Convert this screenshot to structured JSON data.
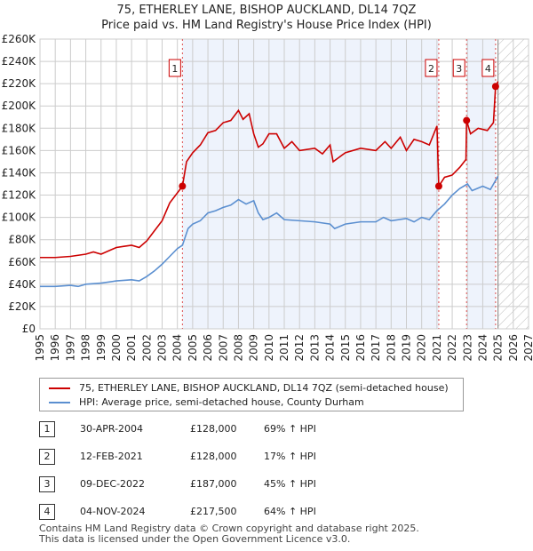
{
  "title": "75, ETHERLEY LANE, BISHOP AUCKLAND, DL14 7QZ",
  "subtitle": "Price paid vs. HM Land Registry's House Price Index (HPI)",
  "colors": {
    "price": "#cc0000",
    "hpi": "#5b8fd0",
    "shade": "#eef3fc"
  },
  "chart_data": {
    "type": "line",
    "title": "75, ETHERLEY LANE, BISHOP AUCKLAND, DL14 7QZ",
    "xlim": [
      1995,
      2027
    ],
    "ylim": [
      0,
      260000
    ],
    "x_ticks": [
      "1995",
      "1996",
      "1997",
      "1998",
      "1999",
      "2000",
      "2001",
      "2002",
      "2003",
      "2004",
      "2005",
      "2006",
      "2007",
      "2008",
      "2009",
      "2010",
      "2011",
      "2012",
      "2013",
      "2014",
      "2015",
      "2016",
      "2017",
      "2018",
      "2019",
      "2020",
      "2021",
      "2022",
      "2023",
      "2024",
      "2025",
      "2026",
      "2027"
    ],
    "y_ticks": [
      "£0",
      "£20K",
      "£40K",
      "£60K",
      "£80K",
      "£100K",
      "£120K",
      "£140K",
      "£160K",
      "£180K",
      "£200K",
      "£220K",
      "£240K",
      "£260K"
    ],
    "series": [
      {
        "name": "75, ETHERLEY LANE, BISHOP AUCKLAND, DL14 7QZ (semi-detached house)",
        "color": "#cc0000",
        "x": [
          1995,
          1996,
          1997,
          1998,
          1998.5,
          1999,
          2000,
          2000.5,
          2001,
          2001.5,
          2002,
          2002.5,
          2003,
          2003.5,
          2004,
          2004.33,
          2004.6,
          2005,
          2005.5,
          2006,
          2006.5,
          2007,
          2007.5,
          2008,
          2008.3,
          2008.7,
          2009,
          2009.3,
          2009.6,
          2010,
          2010.5,
          2011,
          2011.5,
          2012,
          2013,
          2013.5,
          2014,
          2014.2,
          2015,
          2016,
          2017,
          2017.6,
          2018,
          2018.6,
          2019,
          2019.5,
          2020,
          2020.5,
          2021,
          2021.12,
          2021.5,
          2022,
          2022.5,
          2022.9,
          2022.94,
          2023.2,
          2023.7,
          2024.3,
          2024.7,
          2024.84,
          2025
        ],
        "y": [
          64,
          64,
          65,
          67,
          69,
          67,
          73,
          74,
          75,
          73,
          79,
          88,
          97,
          113,
          122,
          128,
          150,
          158,
          165,
          176,
          178,
          185,
          187,
          196,
          188,
          193,
          175,
          163,
          166,
          175,
          175,
          162,
          168,
          160,
          162,
          157,
          165,
          150,
          158,
          162,
          160,
          168,
          162,
          172,
          160,
          170,
          168,
          165,
          182,
          128,
          136,
          138,
          145,
          152,
          187,
          175,
          180,
          178,
          185,
          217.5,
          222
        ]
      },
      {
        "name": "HPI: Average price, semi-detached house, County Durham",
        "color": "#5b8fd0",
        "x": [
          1995,
          1996,
          1997,
          1997.5,
          1998,
          1999,
          2000,
          2001,
          2001.5,
          2002,
          2002.5,
          2003,
          2003.5,
          2004,
          2004.33,
          2004.7,
          2005,
          2005.5,
          2006,
          2006.5,
          2007,
          2007.5,
          2008,
          2008.5,
          2009,
          2009.3,
          2009.6,
          2010,
          2010.5,
          2011,
          2012,
          2013,
          2014,
          2014.3,
          2015,
          2016,
          2017,
          2017.5,
          2018,
          2019,
          2019.5,
          2020,
          2020.5,
          2021,
          2021.5,
          2022,
          2022.5,
          2023,
          2023.3,
          2024,
          2024.5,
          2025
        ],
        "y": [
          38,
          38,
          39,
          38,
          40,
          41,
          43,
          44,
          43,
          47,
          52,
          58,
          65,
          72,
          75,
          90,
          94,
          97,
          104,
          106,
          109,
          111,
          116,
          112,
          115,
          104,
          98,
          100,
          104,
          98,
          97,
          96,
          94,
          90,
          94,
          96,
          96,
          100,
          97,
          99,
          96,
          100,
          98,
          106,
          112,
          120,
          126,
          130,
          124,
          128,
          125,
          137
        ]
      }
    ],
    "y_unit": "thousands GBP",
    "sales": [
      {
        "label": "1",
        "x": 2004.33,
        "y": 128
      },
      {
        "label": "2",
        "x": 2021.12,
        "y": 128
      },
      {
        "label": "3",
        "x": 2022.94,
        "y": 187
      },
      {
        "label": "4",
        "x": 2024.84,
        "y": 217.5
      }
    ],
    "shaded": [
      [
        2004.33,
        2021.12
      ],
      [
        2022.94,
        2024.84
      ]
    ],
    "forecast_hatch": [
      2025,
      2027
    ]
  },
  "legend": [
    "75, ETHERLEY LANE, BISHOP AUCKLAND, DL14 7QZ (semi-detached house)",
    "HPI: Average price, semi-detached house, County Durham"
  ],
  "table": [
    {
      "n": "1",
      "date": "30-APR-2004",
      "price": "£128,000",
      "hpi": "69% ↑ HPI"
    },
    {
      "n": "2",
      "date": "12-FEB-2021",
      "price": "£128,000",
      "hpi": "17% ↑ HPI"
    },
    {
      "n": "3",
      "date": "09-DEC-2022",
      "price": "£187,000",
      "hpi": "45% ↑ HPI"
    },
    {
      "n": "4",
      "date": "04-NOV-2024",
      "price": "£217,500",
      "hpi": "64% ↑ HPI"
    }
  ],
  "footer": [
    "Contains HM Land Registry data © Crown copyright and database right 2025.",
    "This data is licensed under the Open Government Licence v3.0."
  ]
}
